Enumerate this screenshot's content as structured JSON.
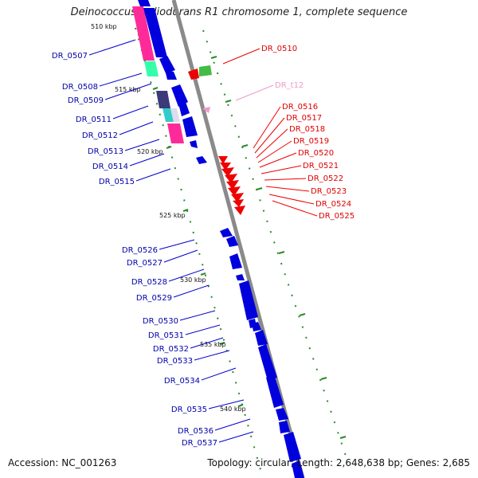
{
  "title": "Deinococcus radiodurans R1 chromosome 1, complete sequence",
  "footer": {
    "accession": "Accession: NC_001263",
    "summary": "Topology: circular; Length: 2,648,638 bp; Genes: 2,685"
  },
  "colors": {
    "forward_gene": "#0000dd",
    "reverse_gene": "#ee0000",
    "trna": "#ee99cc",
    "backbone": "#888888",
    "ticks": "#228822",
    "left_labels": "#0000aa",
    "right_labels": "#dd0000"
  },
  "kbp_labels": [
    "510 kbp",
    "515 kbp",
    "520 kbp",
    "525 kbp",
    "530 kbp",
    "535 kbp",
    "540 kbp"
  ],
  "left_labels": [
    "DR_0507",
    "DR_0508",
    "DR_0509",
    "DR_0511",
    "DR_0512",
    "DR_0513",
    "DR_0514",
    "DR_0515",
    "DR_0526",
    "DR_0527",
    "DR_0528",
    "DR_0529",
    "DR_0530",
    "DR_0531",
    "DR_0532",
    "DR_0533",
    "DR_0534",
    "DR_0535",
    "DR_0536",
    "DR_0537"
  ],
  "right_labels": [
    "DR_0510",
    "DR_t12",
    "DR_0516",
    "DR_0517",
    "DR_0518",
    "DR_0519",
    "DR_0520",
    "DR_0521",
    "DR_0522",
    "DR_0523",
    "DR_0524",
    "DR_0525"
  ]
}
